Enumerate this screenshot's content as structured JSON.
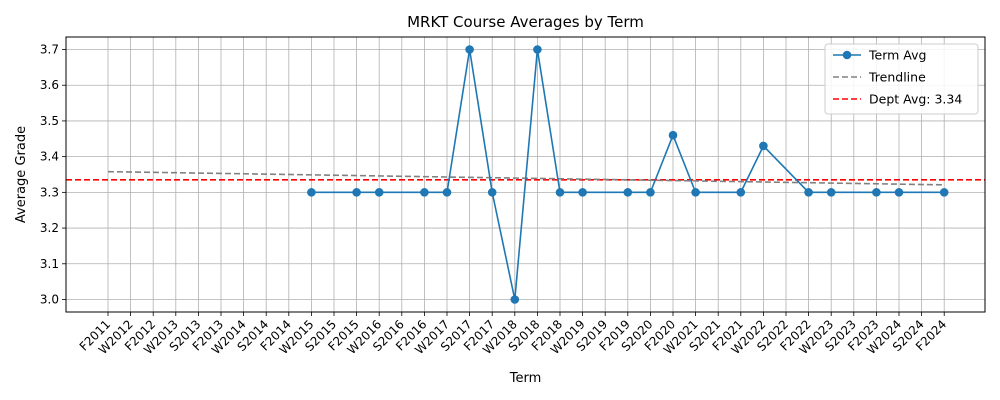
{
  "chart_data": {
    "type": "line",
    "title": "MRKT Course Averages by Term",
    "xlabel": "Term",
    "ylabel": "Average Grade",
    "categories": [
      "F2011",
      "W2012",
      "F2012",
      "W2013",
      "S2013",
      "F2013",
      "W2014",
      "S2014",
      "F2014",
      "W2015",
      "S2015",
      "F2015",
      "W2016",
      "S2016",
      "F2016",
      "W2017",
      "S2017",
      "F2017",
      "W2018",
      "S2018",
      "F2018",
      "W2019",
      "S2019",
      "F2019",
      "S2020",
      "F2020",
      "W2021",
      "S2021",
      "F2021",
      "W2022",
      "S2022",
      "F2022",
      "W2023",
      "S2023",
      "F2023",
      "W2024",
      "S2024",
      "F2024"
    ],
    "ylim": [
      2.965,
      3.735
    ],
    "yticks": [
      3.0,
      3.1,
      3.2,
      3.3,
      3.4,
      3.5,
      3.6,
      3.7
    ],
    "grid": true,
    "legend_position": "top-right",
    "series": [
      {
        "name": "Term Avg",
        "color": "#1f77b4",
        "style": "solid-with-markers",
        "points": [
          {
            "x": "W2015",
            "y": 3.3
          },
          {
            "x": "F2015",
            "y": 3.3
          },
          {
            "x": "W2016",
            "y": 3.3
          },
          {
            "x": "F2016",
            "y": 3.3
          },
          {
            "x": "W2017",
            "y": 3.3
          },
          {
            "x": "S2017",
            "y": 3.7
          },
          {
            "x": "F2017",
            "y": 3.3
          },
          {
            "x": "W2018",
            "y": 3.0
          },
          {
            "x": "S2018",
            "y": 3.7
          },
          {
            "x": "F2018",
            "y": 3.3
          },
          {
            "x": "W2019",
            "y": 3.3
          },
          {
            "x": "F2019",
            "y": 3.3
          },
          {
            "x": "S2020",
            "y": 3.3
          },
          {
            "x": "F2020",
            "y": 3.46
          },
          {
            "x": "W2021",
            "y": 3.3
          },
          {
            "x": "F2021",
            "y": 3.3
          },
          {
            "x": "W2022",
            "y": 3.43
          },
          {
            "x": "F2022",
            "y": 3.3
          },
          {
            "x": "W2023",
            "y": 3.3
          },
          {
            "x": "F2023",
            "y": 3.3
          },
          {
            "x": "W2024",
            "y": 3.3
          },
          {
            "x": "F2024",
            "y": 3.3
          }
        ]
      },
      {
        "name": "Trendline",
        "color": "#808080",
        "style": "dashed",
        "points": [
          {
            "x": "F2011",
            "y": 3.358
          },
          {
            "x": "F2024",
            "y": 3.321
          }
        ]
      },
      {
        "name": "Dept Avg: 3.34",
        "color": "#ff0000",
        "style": "dashed-horizontal",
        "value": 3.335
      }
    ]
  }
}
